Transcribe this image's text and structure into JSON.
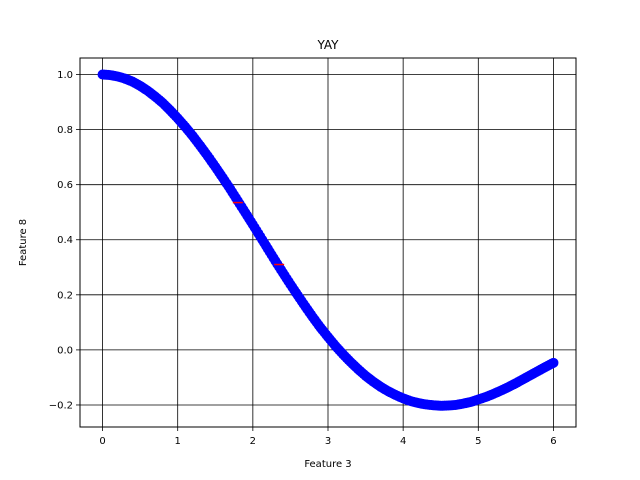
{
  "chart_data": {
    "type": "scatter",
    "title": "YAY",
    "xlabel": "Feature 3",
    "ylabel": "Feature 8",
    "xlim": [
      -0.3,
      6.3
    ],
    "ylim": [
      -0.28,
      1.06
    ],
    "xticks": [
      0,
      1,
      2,
      3,
      4,
      5,
      6
    ],
    "yticks": [
      -0.2,
      0.0,
      0.2,
      0.4,
      0.6,
      0.8,
      1.0
    ],
    "xtick_labels": [
      "0",
      "1",
      "2",
      "3",
      "4",
      "5",
      "6"
    ],
    "ytick_labels": [
      "−0.2",
      "0.0",
      "0.2",
      "0.4",
      "0.6",
      "0.8",
      "1.0"
    ],
    "grid": true,
    "series": [
      {
        "color": "#0000ff",
        "marker": "circle",
        "x": [
          0.0,
          0.1,
          0.2,
          0.3,
          0.4,
          0.5,
          0.6,
          0.7,
          0.8,
          0.9,
          1.0,
          1.1,
          1.2,
          1.3,
          1.4,
          1.5,
          1.6,
          1.7,
          1.8,
          1.9,
          2.0,
          2.1,
          2.2,
          2.3,
          2.4,
          2.5,
          2.6,
          2.7,
          2.8,
          2.9,
          3.0,
          3.1,
          3.2,
          3.3,
          3.4,
          3.5,
          3.6,
          3.7,
          3.8,
          3.9,
          4.0,
          4.1,
          4.2,
          4.3,
          4.4,
          4.5,
          4.6,
          4.7,
          4.8,
          4.9,
          5.0,
          5.1,
          5.2,
          5.3,
          5.4,
          5.5,
          5.6,
          5.7,
          5.8,
          5.9,
          6.0
        ],
        "y": [
          1.0,
          0.998,
          0.993,
          0.985,
          0.974,
          0.959,
          0.941,
          0.92,
          0.897,
          0.87,
          0.841,
          0.81,
          0.777,
          0.741,
          0.704,
          0.665,
          0.625,
          0.584,
          0.541,
          0.498,
          0.455,
          0.411,
          0.367,
          0.323,
          0.28,
          0.238,
          0.197,
          0.157,
          0.118,
          0.081,
          0.047,
          0.014,
          -0.016,
          -0.044,
          -0.07,
          -0.094,
          -0.115,
          -0.134,
          -0.15,
          -0.164,
          -0.176,
          -0.186,
          -0.193,
          -0.198,
          -0.201,
          -0.203,
          -0.202,
          -0.2,
          -0.195,
          -0.189,
          -0.18,
          -0.171,
          -0.16,
          -0.148,
          -0.135,
          -0.121,
          -0.106,
          -0.091,
          -0.076,
          -0.061,
          -0.047
        ]
      },
      {
        "color": "#ff0000",
        "marker": "tick",
        "x": [
          1.8,
          2.35
        ],
        "y": [
          0.535,
          0.31
        ]
      }
    ]
  }
}
